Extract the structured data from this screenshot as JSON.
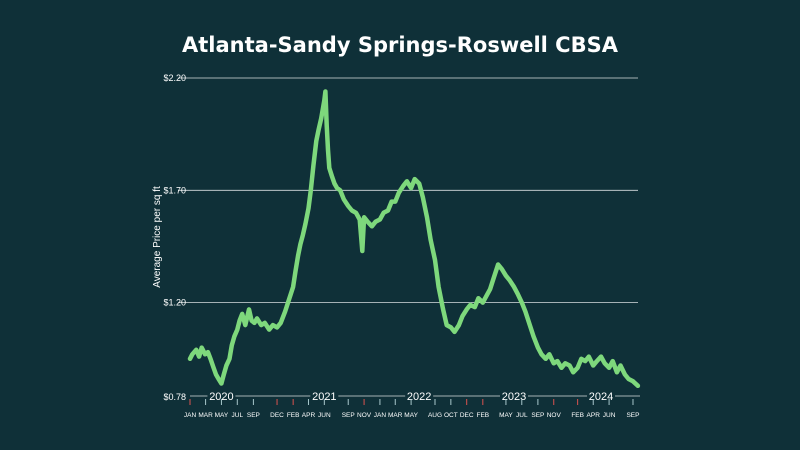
{
  "chart_data": {
    "type": "line",
    "title": "Atlanta-Sandy Springs-Roswell CBSA",
    "ylabel": "Average Price per sq ft",
    "xlabel": "",
    "ylim": [
      0.78,
      2.2
    ],
    "y_ticks": [
      0.78,
      1.2,
      1.7,
      2.2
    ],
    "y_tick_labels": [
      "$0.78",
      "$1.20",
      "$1.70",
      "$2.20"
    ],
    "grid": true,
    "x_range": [
      "2020-01",
      "2024-09"
    ],
    "year_labels": [
      {
        "label": "2020",
        "month": "2020-05"
      },
      {
        "label": "2021",
        "month": "2021-06"
      },
      {
        "label": "2022",
        "month": "2022-06"
      },
      {
        "label": "2023",
        "month": "2023-06"
      },
      {
        "label": "2024",
        "month": "2024-05"
      }
    ],
    "month_ticks": [
      {
        "label": "JAN",
        "month": "2020-01"
      },
      {
        "label": "MAR",
        "month": "2020-03"
      },
      {
        "label": "MAY",
        "month": "2020-05"
      },
      {
        "label": "JUL",
        "month": "2020-07"
      },
      {
        "label": "SEP",
        "month": "2020-09"
      },
      {
        "label": "DEC",
        "month": "2020-12"
      },
      {
        "label": "FEB",
        "month": "2021-02"
      },
      {
        "label": "APR",
        "month": "2021-04"
      },
      {
        "label": "JUN",
        "month": "2021-06"
      },
      {
        "label": "SEP",
        "month": "2021-09"
      },
      {
        "label": "NOV",
        "month": "2021-11"
      },
      {
        "label": "JAN",
        "month": "2022-01"
      },
      {
        "label": "MAR",
        "month": "2022-03"
      },
      {
        "label": "MAY",
        "month": "2022-05"
      },
      {
        "label": "AUG",
        "month": "2022-08"
      },
      {
        "label": "OCT",
        "month": "2022-10"
      },
      {
        "label": "DEC",
        "month": "2022-12"
      },
      {
        "label": "FEB",
        "month": "2023-02"
      },
      {
        "label": "MAY",
        "month": "2023-05"
      },
      {
        "label": "JUL",
        "month": "2023-07"
      },
      {
        "label": "SEP",
        "month": "2023-09"
      },
      {
        "label": "NOV",
        "month": "2023-11"
      },
      {
        "label": "FEB",
        "month": "2024-02"
      },
      {
        "label": "APR",
        "month": "2024-04"
      },
      {
        "label": "JUN",
        "month": "2024-06"
      },
      {
        "label": "SEP",
        "month": "2024-09"
      }
    ],
    "highlight_ticks": [
      "2020-01",
      "2020-12",
      "2021-02",
      "2021-11",
      "2022-12",
      "2023-02",
      "2023-11",
      "2024-02"
    ],
    "colors": {
      "background": "#0f3038",
      "line": "#7ed87c",
      "grid": "#d8dedf",
      "tick_default": "#a9c8cc",
      "tick_highlight": "#d9534f",
      "text": "#ffffff"
    },
    "series": [
      {
        "x": [
          "2020-01-01",
          "2020-01-10",
          "2020-01-25",
          "2020-02-05",
          "2020-02-15",
          "2020-02-28",
          "2020-03-10",
          "2020-03-20",
          "2020-04-01",
          "2020-04-10",
          "2020-04-20",
          "2020-05-01",
          "2020-05-10",
          "2020-05-20",
          "2020-06-01",
          "2020-06-10",
          "2020-06-20",
          "2020-07-01",
          "2020-07-10",
          "2020-07-20",
          "2020-08-01",
          "2020-08-15",
          "2020-08-25",
          "2020-09-05",
          "2020-09-15",
          "2020-10-01",
          "2020-10-15",
          "2020-11-01",
          "2020-11-15",
          "2020-12-01",
          "2020-12-15",
          "2021-01-01",
          "2021-01-15",
          "2021-02-01",
          "2021-02-10",
          "2021-02-20",
          "2021-03-01",
          "2021-03-10",
          "2021-03-20",
          "2021-04-01",
          "2021-04-10",
          "2021-04-20",
          "2021-05-01",
          "2021-05-10",
          "2021-05-20",
          "2021-06-01",
          "2021-06-05",
          "2021-06-10",
          "2021-06-15",
          "2021-06-20",
          "2021-07-01",
          "2021-07-10",
          "2021-07-20",
          "2021-08-01",
          "2021-08-15",
          "2021-09-01",
          "2021-09-15",
          "2021-10-01",
          "2021-10-15",
          "2021-10-25",
          "2021-11-01",
          "2021-11-15",
          "2021-12-01",
          "2021-12-15",
          "2022-01-01",
          "2022-01-15",
          "2022-02-01",
          "2022-02-15",
          "2022-03-01",
          "2022-03-15",
          "2022-04-01",
          "2022-04-15",
          "2022-05-01",
          "2022-05-15",
          "2022-06-01",
          "2022-06-15",
          "2022-07-01",
          "2022-07-15",
          "2022-08-01",
          "2022-08-15",
          "2022-09-01",
          "2022-09-15",
          "2022-10-01",
          "2022-10-15",
          "2022-11-01",
          "2022-11-15",
          "2022-12-01",
          "2022-12-15",
          "2023-01-01",
          "2023-01-15",
          "2023-02-01",
          "2023-02-15",
          "2023-03-01",
          "2023-03-15",
          "2023-04-01",
          "2023-04-15",
          "2023-05-01",
          "2023-05-15",
          "2023-06-01",
          "2023-06-15",
          "2023-07-01",
          "2023-07-15",
          "2023-08-01",
          "2023-08-15",
          "2023-09-01",
          "2023-09-15",
          "2023-10-01",
          "2023-10-15",
          "2023-11-01",
          "2023-11-15",
          "2023-12-01",
          "2023-12-15",
          "2024-01-01",
          "2024-01-15",
          "2024-02-01",
          "2024-02-15",
          "2024-03-01",
          "2024-03-15",
          "2024-04-01",
          "2024-04-15",
          "2024-05-01",
          "2024-05-15",
          "2024-06-01",
          "2024-06-15",
          "2024-07-01",
          "2024-07-15",
          "2024-08-01",
          "2024-08-15",
          "2024-09-01",
          "2024-09-20"
        ],
        "values": [
          0.95,
          0.97,
          0.99,
          0.96,
          1.0,
          0.97,
          0.98,
          0.95,
          0.91,
          0.88,
          0.86,
          0.84,
          0.88,
          0.92,
          0.95,
          1.01,
          1.05,
          1.08,
          1.12,
          1.15,
          1.1,
          1.17,
          1.12,
          1.11,
          1.13,
          1.1,
          1.11,
          1.08,
          1.1,
          1.09,
          1.11,
          1.16,
          1.21,
          1.27,
          1.34,
          1.41,
          1.46,
          1.5,
          1.55,
          1.62,
          1.7,
          1.81,
          1.92,
          1.97,
          2.02,
          2.1,
          2.14,
          1.99,
          1.88,
          1.8,
          1.76,
          1.73,
          1.71,
          1.7,
          1.66,
          1.63,
          1.61,
          1.6,
          1.57,
          1.43,
          1.58,
          1.56,
          1.54,
          1.56,
          1.57,
          1.6,
          1.61,
          1.65,
          1.65,
          1.69,
          1.72,
          1.74,
          1.71,
          1.75,
          1.73,
          1.67,
          1.58,
          1.48,
          1.39,
          1.27,
          1.17,
          1.1,
          1.09,
          1.07,
          1.1,
          1.14,
          1.17,
          1.19,
          1.18,
          1.22,
          1.2,
          1.23,
          1.26,
          1.31,
          1.37,
          1.35,
          1.32,
          1.3,
          1.27,
          1.24,
          1.2,
          1.16,
          1.1,
          1.05,
          1.0,
          0.97,
          0.95,
          0.97,
          0.93,
          0.94,
          0.91,
          0.93,
          0.92,
          0.89,
          0.91,
          0.95,
          0.94,
          0.96,
          0.92,
          0.94,
          0.96,
          0.93,
          0.91,
          0.94,
          0.89,
          0.92,
          0.88,
          0.86,
          0.85,
          0.83
        ]
      }
    ]
  }
}
